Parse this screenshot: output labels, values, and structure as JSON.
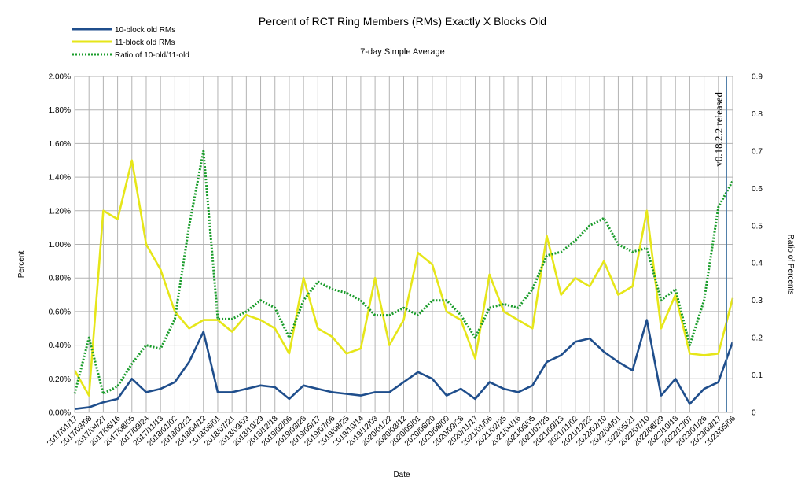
{
  "chart_data": {
    "type": "line",
    "title": "Percent of RCT Ring Members (RMs) Exactly X Blocks Old",
    "subtitle": "7-day Simple Average",
    "xlabel": "Date",
    "ylabel": "Percent",
    "y2label": "Ratio of Percents",
    "ylim": [
      0,
      2.0
    ],
    "y2lim": [
      0,
      0.9
    ],
    "y_ticks": [
      "0.00%",
      "0.20%",
      "0.40%",
      "0.60%",
      "0.80%",
      "1.00%",
      "1.20%",
      "1.40%",
      "1.60%",
      "1.80%",
      "2.00%"
    ],
    "y2_ticks": [
      "0",
      "0.1",
      "0.2",
      "0.3",
      "0.4",
      "0.5",
      "0.6",
      "0.7",
      "0.8",
      "0.9"
    ],
    "grid": true,
    "legend_position": "top-left",
    "annotation": {
      "text": "v0.18.2.2 released",
      "date": "2023/04/15"
    },
    "categories": [
      "2017/01/17",
      "2017/03/08",
      "2017/04/27",
      "2017/06/16",
      "2017/08/05",
      "2017/09/24",
      "2017/11/13",
      "2018/01/02",
      "2018/02/21",
      "2018/04/12",
      "2018/06/01",
      "2018/07/21",
      "2018/09/09",
      "2018/10/29",
      "2018/12/18",
      "2019/02/06",
      "2019/03/28",
      "2019/05/17",
      "2019/07/06",
      "2019/08/25",
      "2019/10/14",
      "2019/12/03",
      "2020/01/22",
      "2020/03/12",
      "2020/05/01",
      "2020/06/20",
      "2020/08/09",
      "2020/09/28",
      "2020/11/17",
      "2021/01/06",
      "2021/02/25",
      "2021/04/16",
      "2021/06/05",
      "2021/07/25",
      "2021/09/13",
      "2021/11/02",
      "2021/12/22",
      "2022/02/10",
      "2022/04/01",
      "2022/05/21",
      "2022/07/10",
      "2022/08/29",
      "2022/10/18",
      "2022/12/07",
      "2023/01/26",
      "2023/03/17",
      "2023/05/06"
    ],
    "series": [
      {
        "name": "10-block old RMs",
        "axis": "left",
        "color": "#1f4e8c",
        "style": "solid",
        "values": [
          0.02,
          0.03,
          0.06,
          0.08,
          0.2,
          0.12,
          0.14,
          0.18,
          0.3,
          0.48,
          0.12,
          0.12,
          0.14,
          0.16,
          0.15,
          0.08,
          0.16,
          0.14,
          0.12,
          0.11,
          0.1,
          0.12,
          0.12,
          0.18,
          0.24,
          0.2,
          0.1,
          0.14,
          0.08,
          0.18,
          0.14,
          0.12,
          0.16,
          0.3,
          0.34,
          0.42,
          0.44,
          0.36,
          0.3,
          0.25,
          0.55,
          0.1,
          0.2,
          0.05,
          0.14,
          0.18,
          0.42
        ]
      },
      {
        "name": "11-block old RMs",
        "axis": "left",
        "color": "#e6e619",
        "style": "solid",
        "values": [
          0.25,
          0.1,
          1.2,
          1.15,
          1.5,
          1.0,
          0.85,
          0.6,
          0.5,
          0.55,
          0.55,
          0.48,
          0.58,
          0.55,
          0.5,
          0.35,
          0.8,
          0.5,
          0.45,
          0.35,
          0.38,
          0.8,
          0.4,
          0.55,
          0.95,
          0.88,
          0.6,
          0.55,
          0.32,
          0.82,
          0.6,
          0.55,
          0.5,
          1.05,
          0.7,
          0.8,
          0.75,
          0.9,
          0.7,
          0.75,
          1.2,
          0.5,
          0.7,
          0.35,
          0.34,
          0.35,
          0.68
        ]
      },
      {
        "name": "Ratio of 10-old/11-old",
        "axis": "right",
        "color": "#1a9c2b",
        "style": "dotted",
        "values": [
          0.05,
          0.2,
          0.05,
          0.07,
          0.13,
          0.18,
          0.17,
          0.25,
          0.5,
          0.7,
          0.25,
          0.25,
          0.27,
          0.3,
          0.28,
          0.2,
          0.3,
          0.35,
          0.33,
          0.32,
          0.3,
          0.26,
          0.26,
          0.28,
          0.26,
          0.3,
          0.3,
          0.26,
          0.2,
          0.28,
          0.29,
          0.28,
          0.33,
          0.42,
          0.43,
          0.46,
          0.5,
          0.52,
          0.45,
          0.43,
          0.44,
          0.3,
          0.33,
          0.18,
          0.3,
          0.55,
          0.62
        ]
      }
    ]
  }
}
